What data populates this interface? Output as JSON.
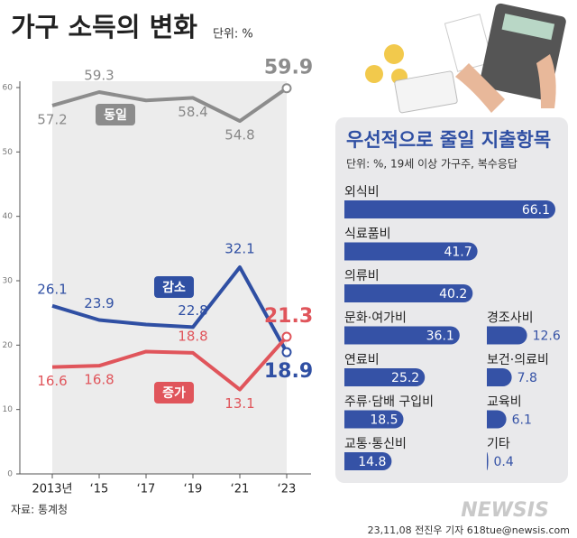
{
  "chart_data": [
    {
      "type": "line",
      "title": "가구 소득의 변화",
      "unit": "단위: %",
      "categories": [
        "2013년",
        "‘15",
        "‘17",
        "‘19",
        "‘21",
        "‘23"
      ],
      "ylim": [
        0,
        60
      ],
      "yticks": [
        0,
        10,
        20,
        30,
        40,
        50,
        60
      ],
      "series": [
        {
          "name": "동일",
          "color": "#8c8c8c",
          "values": [
            57.2,
            59.3,
            58.0,
            58.4,
            54.8,
            59.9
          ],
          "value_labels": [
            "57.2",
            "59.3",
            null,
            "58.4",
            "54.8",
            "59.9"
          ]
        },
        {
          "name": "감소",
          "color": "#2f4fa3",
          "values": [
            26.1,
            23.9,
            23.2,
            22.8,
            32.1,
            18.9
          ],
          "value_labels": [
            "26.1",
            "23.9",
            null,
            "22.8",
            "32.1",
            "18.9"
          ]
        },
        {
          "name": "증가",
          "color": "#e0555b",
          "values": [
            16.6,
            16.8,
            19.0,
            18.8,
            13.1,
            21.3
          ],
          "value_labels": [
            "16.6",
            "16.8",
            null,
            "18.8",
            "13.1",
            "21.3"
          ]
        }
      ]
    },
    {
      "type": "bar",
      "orientation": "horizontal",
      "title": "우선적으로 줄일 지출항목",
      "subtitle": "단위: %, 19세 이상 가구주, 복수응답",
      "categories": [
        "외식비",
        "식료품비",
        "의류비",
        "문화·여가비",
        "연료비",
        "주류·담배 구입비",
        "교통·통신비",
        "경조사비",
        "보건·의료비",
        "교육비",
        "기타"
      ],
      "values": [
        66.1,
        41.7,
        40.2,
        36.1,
        25.2,
        18.5,
        14.8,
        12.6,
        7.8,
        6.1,
        0.4
      ],
      "color": "#3552a6"
    }
  ],
  "source": "자료: 통계청",
  "credit": "23,11,08 전진우 기자 618tue@newsis.com",
  "watermark": "NEWSIS"
}
